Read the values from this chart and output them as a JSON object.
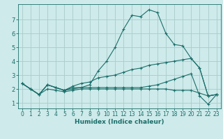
{
  "xlabel": "Humidex (Indice chaleur)",
  "bg_color": "#ceeaea",
  "grid_color": "#a8cccc",
  "line_color": "#1a6e6a",
  "xlim": [
    -0.5,
    23.5
  ],
  "ylim": [
    0.6,
    8.1
  ],
  "xticks": [
    0,
    1,
    2,
    3,
    4,
    5,
    6,
    7,
    8,
    9,
    10,
    11,
    12,
    13,
    14,
    15,
    16,
    17,
    18,
    19,
    20,
    21,
    22,
    23
  ],
  "yticks": [
    1,
    2,
    3,
    4,
    5,
    6,
    7
  ],
  "lines": [
    {
      "x": [
        0,
        1,
        2,
        3,
        4,
        5,
        6,
        7,
        8,
        9,
        10,
        11,
        12,
        13,
        14,
        15,
        16,
        17,
        18,
        19,
        20,
        21,
        22,
        23
      ],
      "y": [
        2.4,
        2.0,
        1.6,
        2.3,
        2.1,
        1.9,
        2.0,
        2.1,
        2.3,
        3.3,
        4.0,
        5.0,
        6.3,
        7.3,
        7.2,
        7.7,
        7.5,
        6.0,
        5.2,
        5.1,
        4.2,
        3.5,
        1.5,
        1.6
      ]
    },
    {
      "x": [
        0,
        1,
        2,
        3,
        4,
        5,
        6,
        7,
        8,
        9,
        10,
        11,
        12,
        13,
        14,
        15,
        16,
        17,
        18,
        19,
        20,
        21,
        22,
        23
      ],
      "y": [
        2.4,
        2.0,
        1.6,
        2.3,
        2.1,
        1.9,
        2.2,
        2.4,
        2.5,
        2.8,
        2.9,
        3.0,
        3.2,
        3.4,
        3.5,
        3.7,
        3.8,
        3.9,
        4.0,
        4.1,
        4.2,
        3.5,
        1.5,
        1.6
      ]
    },
    {
      "x": [
        0,
        1,
        2,
        3,
        4,
        5,
        6,
        7,
        8,
        9,
        10,
        11,
        12,
        13,
        14,
        15,
        16,
        17,
        18,
        19,
        20,
        21,
        22,
        23
      ],
      "y": [
        2.4,
        2.0,
        1.6,
        2.0,
        1.9,
        1.8,
        1.9,
        2.0,
        2.0,
        2.0,
        2.0,
        2.0,
        2.0,
        2.0,
        2.0,
        2.0,
        2.0,
        2.0,
        1.9,
        1.9,
        1.9,
        1.7,
        1.5,
        1.6
      ]
    },
    {
      "x": [
        0,
        1,
        2,
        3,
        4,
        5,
        6,
        7,
        8,
        9,
        10,
        11,
        12,
        13,
        14,
        15,
        16,
        17,
        18,
        19,
        20,
        21,
        22,
        23
      ],
      "y": [
        2.4,
        2.0,
        1.6,
        2.3,
        2.1,
        1.9,
        2.1,
        2.1,
        2.1,
        2.1,
        2.1,
        2.1,
        2.1,
        2.1,
        2.1,
        2.2,
        2.3,
        2.5,
        2.7,
        2.9,
        3.1,
        1.5,
        0.9,
        1.6
      ]
    }
  ]
}
